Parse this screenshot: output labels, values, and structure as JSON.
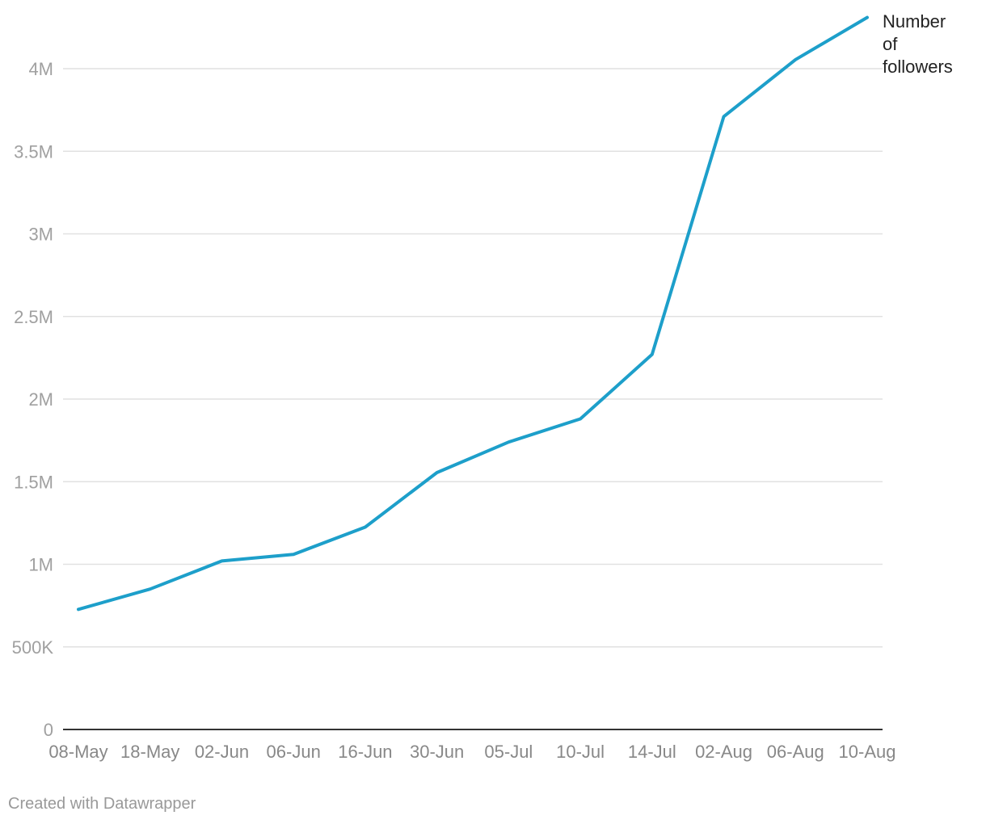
{
  "chart_data": {
    "type": "line",
    "title": "",
    "xlabel": "",
    "ylabel": "",
    "categories": [
      "08-May",
      "18-May",
      "02-Jun",
      "06-Jun",
      "16-Jun",
      "30-Jun",
      "05-Jul",
      "10-Jul",
      "14-Jul",
      "02-Aug",
      "06-Aug",
      "10-Aug"
    ],
    "series": [
      {
        "name": "Number of followers",
        "label_lines": [
          "Number",
          "of",
          "followers"
        ],
        "color": "#1d9fca",
        "values": [
          727000,
          850000,
          1020000,
          1060000,
          1225000,
          1555000,
          1740000,
          1880000,
          2270000,
          3710000,
          4055000,
          4310000
        ]
      }
    ],
    "y_ticks": [
      {
        "value": 0,
        "label": "0"
      },
      {
        "value": 500000,
        "label": "500K"
      },
      {
        "value": 1000000,
        "label": "1M"
      },
      {
        "value": 1500000,
        "label": "1.5M"
      },
      {
        "value": 2000000,
        "label": "2M"
      },
      {
        "value": 2500000,
        "label": "2.5M"
      },
      {
        "value": 3000000,
        "label": "3M"
      },
      {
        "value": 3500000,
        "label": "3.5M"
      },
      {
        "value": 4000000,
        "label": "4M"
      }
    ],
    "ylim": [
      0,
      4000000
    ],
    "grid": true,
    "legend": "inline label at end of line"
  },
  "footer": {
    "credit": "Created with Datawrapper"
  }
}
